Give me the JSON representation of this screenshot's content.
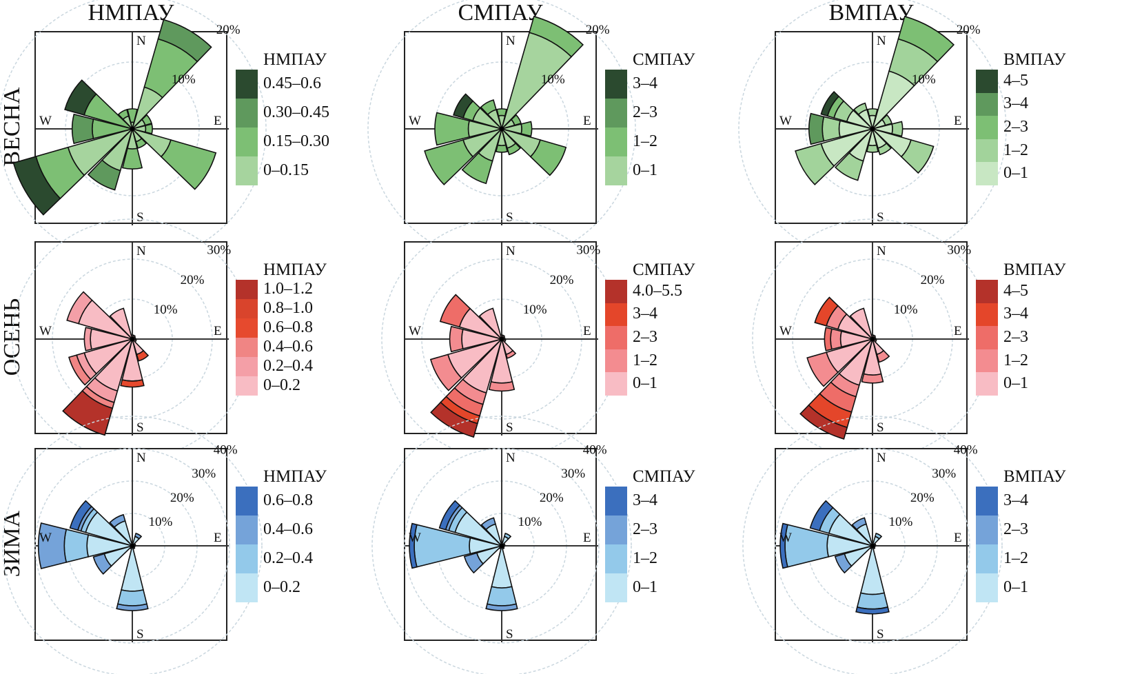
{
  "column_titles": [
    "НМПАУ",
    "СМПАУ",
    "ВМПАУ"
  ],
  "row_titles": [
    "ВЕСНА",
    "ОСЕНЬ",
    "ЗИМА"
  ],
  "compass": {
    "n": "N",
    "e": "E",
    "s": "S",
    "w": "W"
  },
  "chart_data": [
    {
      "type": "pollution-rose",
      "season": "ВЕСНА",
      "legend_title": "НМПАУ",
      "rings": [
        "10%",
        "20%"
      ],
      "ring_values": [
        10,
        20
      ],
      "bins": [
        "0–0.15",
        "0.15–0.30",
        "0.30–0.45",
        "0.45–0.6"
      ],
      "colors": [
        "#a6d49e",
        "#7dbf74",
        "#5f995d",
        "#2b4a2f"
      ],
      "directions": [
        0,
        30,
        60,
        90,
        120,
        150,
        180,
        210,
        240,
        270,
        300,
        330
      ],
      "values": [
        [
          1,
          2,
          0,
          0
        ],
        [
          6.5,
          7.5,
          3,
          0
        ],
        [
          2,
          1,
          0,
          0
        ],
        [
          2,
          1,
          0,
          0
        ],
        [
          6,
          7,
          0,
          0
        ],
        [
          2,
          1,
          0,
          0
        ],
        [
          3,
          3,
          0,
          0
        ],
        [
          6.5,
          0,
          3,
          0
        ],
        [
          10,
          5,
          0,
          3.5
        ],
        [
          0,
          6,
          3,
          0
        ],
        [
          0,
          7.5,
          0,
          3
        ],
        [
          2,
          1,
          0,
          0
        ]
      ]
    },
    {
      "type": "pollution-rose",
      "season": "ВЕСНА",
      "legend_title": "СМПАУ",
      "rings": [
        "10%",
        "20%"
      ],
      "ring_values": [
        10,
        20
      ],
      "bins": [
        "0–1",
        "1–2",
        "2–3",
        "3–4"
      ],
      "colors": [
        "#a6d49e",
        "#7dbf74",
        "#5f995d",
        "#2b4a2f"
      ],
      "directions": [
        0,
        30,
        60,
        90,
        120,
        150,
        180,
        210,
        240,
        270,
        300,
        330
      ],
      "values": [
        [
          2,
          1,
          0,
          0
        ],
        [
          15,
          2.5,
          0,
          0
        ],
        [
          2,
          1,
          0,
          0
        ],
        [
          3,
          1.5,
          0,
          0
        ],
        [
          6,
          4,
          0,
          0
        ],
        [
          3,
          1,
          0,
          0
        ],
        [
          2.5,
          1,
          0,
          0
        ],
        [
          5,
          3.5,
          0,
          0
        ],
        [
          6,
          6,
          0,
          0
        ],
        [
          5,
          5,
          0,
          0
        ],
        [
          4.5,
          1.5,
          0,
          1.5
        ],
        [
          3,
          1.5,
          0,
          0
        ]
      ]
    },
    {
      "type": "pollution-rose",
      "season": "ВЕСНА",
      "legend_title": "ВМПАУ",
      "rings": [
        "10%",
        "20%"
      ],
      "ring_values": [
        10,
        20
      ],
      "bins": [
        "0–1",
        "1–2",
        "2–3",
        "3–4",
        "4–5"
      ],
      "colors": [
        "#c8e7c3",
        "#a2d39b",
        "#7dbf74",
        "#5f995d",
        "#2b4a2f"
      ],
      "directions": [
        0,
        30,
        60,
        90,
        120,
        150,
        180,
        210,
        240,
        270,
        300,
        330
      ],
      "values": [
        [
          2,
          1,
          0,
          0,
          0
        ],
        [
          9,
          5,
          3.5,
          0,
          0
        ],
        [
          2,
          1,
          0,
          0,
          0
        ],
        [
          3,
          1.5,
          0,
          0,
          0
        ],
        [
          6,
          3.5,
          0,
          0,
          0
        ],
        [
          3,
          1,
          0,
          0,
          0
        ],
        [
          2.5,
          1,
          0,
          0,
          0
        ],
        [
          5,
          3,
          0,
          0,
          0
        ],
        [
          8,
          4,
          0,
          0,
          0
        ],
        [
          5,
          2.5,
          0,
          2,
          0
        ],
        [
          4,
          2,
          1,
          0,
          1
        ],
        [
          3,
          1,
          0,
          0,
          0
        ]
      ]
    },
    {
      "type": "pollution-rose",
      "season": "ОСЕНЬ",
      "legend_title": "НМПАУ",
      "rings": [
        "10%",
        "20%",
        "30%"
      ],
      "ring_values": [
        10,
        20,
        30
      ],
      "bins": [
        "0–0.2",
        "0.2–0.4",
        "0.4–0.6",
        "0.6–0.8",
        "0.8–1.0",
        "1.0–1.2"
      ],
      "colors": [
        "#f8bcc4",
        "#f49fa7",
        "#f08584",
        "#e64a2e",
        "#d9442c",
        "#b4322a"
      ],
      "directions": [
        0,
        30,
        60,
        90,
        120,
        150,
        180,
        210,
        240,
        270,
        300,
        330
      ],
      "values": [
        [
          1,
          0,
          0,
          0,
          0,
          0
        ],
        [
          1,
          0,
          0,
          0,
          0,
          0
        ],
        [
          0.8,
          0,
          0,
          0,
          0,
          0
        ],
        [
          0.8,
          0,
          0,
          0,
          0,
          0
        ],
        [
          1,
          0,
          0,
          0,
          0,
          0
        ],
        [
          4,
          0,
          0,
          1.7,
          0,
          0
        ],
        [
          10.5,
          0,
          0,
          1.5,
          0,
          0
        ],
        [
          13.5,
          3,
          1.5,
          0,
          0,
          7
        ],
        [
          12.5,
          2,
          2,
          0,
          0,
          0
        ],
        [
          10.5,
          1.5,
          0,
          0,
          0,
          0
        ],
        [
          14,
          3,
          0,
          0,
          0,
          0
        ],
        [
          8,
          0,
          0,
          0,
          0,
          0
        ]
      ]
    },
    {
      "type": "pollution-rose",
      "season": "ОСЕНЬ",
      "legend_title": "СМПАУ",
      "rings": [
        "10%",
        "20%",
        "30%"
      ],
      "ring_values": [
        10,
        20,
        30
      ],
      "bins": [
        "0–1",
        "1–2",
        "2–3",
        "3–4",
        "4.0–5.5"
      ],
      "colors": [
        "#f8bcc4",
        "#f38c90",
        "#ee6d68",
        "#e4462a",
        "#b4322a"
      ],
      "directions": [
        0,
        30,
        60,
        90,
        120,
        150,
        180,
        210,
        240,
        270,
        300,
        330
      ],
      "values": [
        [
          1,
          0,
          0,
          0,
          0
        ],
        [
          1,
          0,
          0,
          0,
          0
        ],
        [
          0.8,
          0,
          0,
          0,
          0
        ],
        [
          0.8,
          0,
          0,
          0,
          0
        ],
        [
          1,
          0,
          0,
          0,
          0
        ],
        [
          4,
          1,
          0,
          0,
          0
        ],
        [
          11,
          2,
          0,
          0,
          0
        ],
        [
          14,
          3,
          3,
          2,
          3.5
        ],
        [
          14,
          4.5,
          0,
          0,
          0
        ],
        [
          10,
          3,
          0,
          0,
          0
        ],
        [
          11,
          0,
          5,
          0,
          0
        ],
        [
          8,
          0,
          0,
          0,
          0
        ]
      ]
    },
    {
      "type": "pollution-rose",
      "season": "ОСЕНЬ",
      "legend_title": "ВМПАУ",
      "rings": [
        "10%",
        "20%",
        "30%"
      ],
      "ring_values": [
        10,
        20,
        30
      ],
      "bins": [
        "0–1",
        "1–2",
        "2–3",
        "3–4",
        "4–5"
      ],
      "colors": [
        "#f8bcc4",
        "#f38c90",
        "#ee6d68",
        "#e4462a",
        "#b4322a"
      ],
      "directions": [
        0,
        30,
        60,
        90,
        120,
        150,
        180,
        210,
        240,
        270,
        300,
        330
      ],
      "values": [
        [
          1,
          0,
          0,
          0,
          0
        ],
        [
          1,
          0,
          0,
          0,
          0
        ],
        [
          0.8,
          0,
          0,
          0,
          0
        ],
        [
          0.8,
          0,
          0,
          0,
          0
        ],
        [
          1,
          0,
          0,
          0,
          0
        ],
        [
          4,
          2,
          0,
          0,
          0
        ],
        [
          9,
          2,
          0,
          0,
          0
        ],
        [
          12,
          3,
          4,
          4,
          3
        ],
        [
          12,
          5,
          0,
          0,
          0
        ],
        [
          8,
          2.5,
          1.5,
          0,
          0
        ],
        [
          9,
          3,
          0,
          3,
          0
        ],
        [
          8,
          0,
          0,
          0,
          0
        ]
      ]
    },
    {
      "type": "pollution-rose",
      "season": "ЗИМА",
      "legend_title": "НМПАУ",
      "rings": [
        "10%",
        "20%",
        "30%",
        "40%"
      ],
      "ring_values": [
        10,
        20,
        30,
        40
      ],
      "bins": [
        "0–0.2",
        "0.2–0.4",
        "0.4–0.6",
        "0.6–0.8"
      ],
      "colors": [
        "#c0e5f4",
        "#93c9ea",
        "#75a3d9",
        "#3b6fbe"
      ],
      "directions": [
        0,
        30,
        60,
        90,
        120,
        150,
        180,
        210,
        240,
        270,
        300,
        330
      ],
      "values": [
        [
          1,
          0,
          0,
          0
        ],
        [
          3,
          0,
          1,
          0
        ],
        [
          1,
          0,
          0,
          0
        ],
        [
          0.8,
          0,
          0,
          0
        ],
        [
          0.8,
          0,
          0,
          0
        ],
        [
          1,
          0,
          0,
          0
        ],
        [
          14,
          4.5,
          1.5,
          0
        ],
        [
          1,
          0,
          0,
          0
        ],
        [
          9,
          0,
          3.5,
          0
        ],
        [
          14,
          7,
          8,
          0
        ],
        [
          15,
          1.5,
          1,
          2.5
        ],
        [
          8,
          0,
          2,
          0
        ]
      ]
    },
    {
      "type": "pollution-rose",
      "season": "ЗИМА",
      "legend_title": "СМПАУ",
      "rings": [
        "10%",
        "20%",
        "30%",
        "40%"
      ],
      "ring_values": [
        10,
        20,
        30,
        40
      ],
      "bins": [
        "0–1",
        "1–2",
        "2–3",
        "3–4"
      ],
      "colors": [
        "#c0e5f4",
        "#93c9ea",
        "#75a3d9",
        "#3b6fbe"
      ],
      "directions": [
        0,
        30,
        60,
        90,
        120,
        150,
        180,
        210,
        240,
        270,
        300,
        330
      ],
      "values": [
        [
          1,
          0,
          0,
          0
        ],
        [
          3,
          1,
          0,
          0
        ],
        [
          1,
          0,
          0,
          0
        ],
        [
          0.8,
          0,
          0,
          0
        ],
        [
          0.8,
          0,
          0,
          0
        ],
        [
          1,
          0,
          0,
          0
        ],
        [
          13,
          5.5,
          1.5,
          0
        ],
        [
          1,
          0,
          0,
          0
        ],
        [
          8,
          0,
          4,
          0
        ],
        [
          10,
          17,
          0,
          1.5
        ],
        [
          15,
          2,
          1,
          2
        ],
        [
          7,
          0,
          2,
          0
        ]
      ]
    },
    {
      "type": "pollution-rose",
      "season": "ЗИМА",
      "legend_title": "ВМПАУ",
      "rings": [
        "10%",
        "20%",
        "30%",
        "40%"
      ],
      "ring_values": [
        10,
        20,
        30,
        40
      ],
      "bins": [
        "0–1",
        "1–2",
        "2–3",
        "3–4"
      ],
      "colors": [
        "#c0e5f4",
        "#93c9ea",
        "#75a3d9",
        "#3b6fbe"
      ],
      "directions": [
        0,
        30,
        60,
        90,
        120,
        150,
        180,
        210,
        240,
        270,
        300,
        330
      ],
      "values": [
        [
          1,
          0,
          0,
          0
        ],
        [
          3,
          1,
          0,
          0
        ],
        [
          1,
          0,
          0,
          0
        ],
        [
          0.8,
          0,
          0,
          0
        ],
        [
          0.8,
          0,
          0,
          0
        ],
        [
          1,
          0,
          0,
          0
        ],
        [
          15,
          4.5,
          0,
          1.5
        ],
        [
          1,
          0,
          0,
          0
        ],
        [
          9,
          0,
          3,
          0
        ],
        [
          14,
          13,
          0,
          1.5
        ],
        [
          14,
          3,
          0,
          3
        ],
        [
          7,
          0,
          2,
          0
        ]
      ]
    }
  ]
}
